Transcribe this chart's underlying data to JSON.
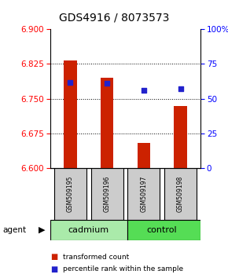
{
  "title": "GDS4916 / 8073573",
  "samples": [
    "GSM509195",
    "GSM509196",
    "GSM509197",
    "GSM509198"
  ],
  "bar_values": [
    6.832,
    6.796,
    6.655,
    6.735
  ],
  "bar_base": 6.6,
  "blue_values": [
    6.785,
    6.783,
    6.768,
    6.772
  ],
  "ylim": [
    6.6,
    6.9
  ],
  "yticks_left": [
    6.6,
    6.675,
    6.75,
    6.825,
    6.9
  ],
  "yticks_right": [
    0,
    25,
    50,
    75,
    100
  ],
  "bar_color": "#cc2200",
  "blue_color": "#2222cc",
  "bar_width": 0.35,
  "blue_size": 25,
  "sample_box_color": "#cccccc",
  "title_fontsize": 10,
  "tick_fontsize": 7.5,
  "legend_fontsize": 6.5,
  "cadmium_color": "#aaeaaa",
  "control_color": "#55dd55"
}
